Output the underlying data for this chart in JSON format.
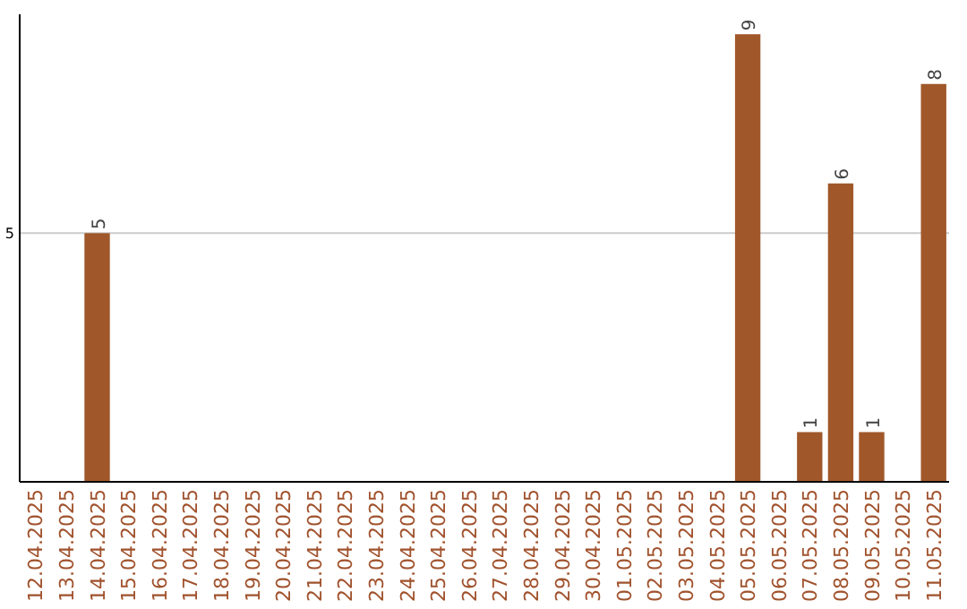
{
  "chart_data": {
    "type": "bar",
    "categories": [
      "12.04.2025",
      "13.04.2025",
      "14.04.2025",
      "15.04.2025",
      "16.04.2025",
      "17.04.2025",
      "18.04.2025",
      "19.04.2025",
      "20.04.2025",
      "21.04.2025",
      "22.04.2025",
      "23.04.2025",
      "24.04.2025",
      "25.04.2025",
      "26.04.2025",
      "27.04.2025",
      "28.04.2025",
      "29.04.2025",
      "30.04.2025",
      "01.05.2025",
      "02.05.2025",
      "03.05.2025",
      "04.05.2025",
      "05.05.2025",
      "06.05.2025",
      "07.05.2025",
      "08.05.2025",
      "09.05.2025",
      "10.05.2025",
      "11.05.2025"
    ],
    "values": [
      0,
      0,
      5,
      0,
      0,
      0,
      0,
      0,
      0,
      0,
      0,
      0,
      0,
      0,
      0,
      0,
      0,
      0,
      0,
      0,
      0,
      0,
      0,
      9,
      0,
      1,
      6,
      1,
      0,
      8
    ],
    "value_labels": [
      null,
      null,
      "5",
      null,
      null,
      null,
      null,
      null,
      null,
      null,
      null,
      null,
      null,
      null,
      null,
      null,
      null,
      null,
      null,
      null,
      null,
      null,
      null,
      "9",
      null,
      "1",
      "6",
      "1",
      null,
      "8"
    ],
    "color": "#a0582a",
    "ylim": [
      0,
      9.4
    ],
    "yticks": [
      5
    ],
    "grid": "y"
  }
}
